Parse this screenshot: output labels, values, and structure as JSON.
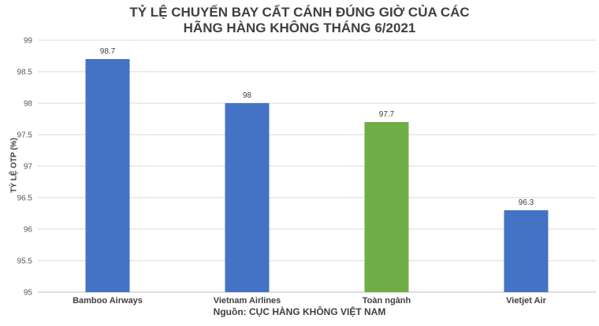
{
  "chart_data": {
    "type": "bar",
    "title_lines": [
      "TỶ LỆ CHUYẾN BAY CẤT CÁNH ĐÚNG GIỜ CỦA CÁC",
      "HÃNG HÀNG KHÔNG THÁNG 6/2021"
    ],
    "ylabel": "TỶ LỆ OTP (%)",
    "xlabel": "Nguồn: CỤC HÀNG KHÔNG VIỆT NAM",
    "categories": [
      "Bamboo Airways",
      "Vietnam Airlines",
      "Toàn ngành",
      "Vietjet Air"
    ],
    "values": [
      98.7,
      98,
      97.7,
      96.3
    ],
    "data_labels": [
      "98.7",
      "98",
      "97.7",
      "96.3"
    ],
    "bar_colors": [
      "#4472c4",
      "#4472c4",
      "#70ad47",
      "#4472c4"
    ],
    "ylim": [
      95,
      99
    ],
    "yticks": [
      "95",
      "95.5",
      "96",
      "96.5",
      "97",
      "97.5",
      "98",
      "98.5",
      "99"
    ],
    "grid": true,
    "legend": "none"
  }
}
